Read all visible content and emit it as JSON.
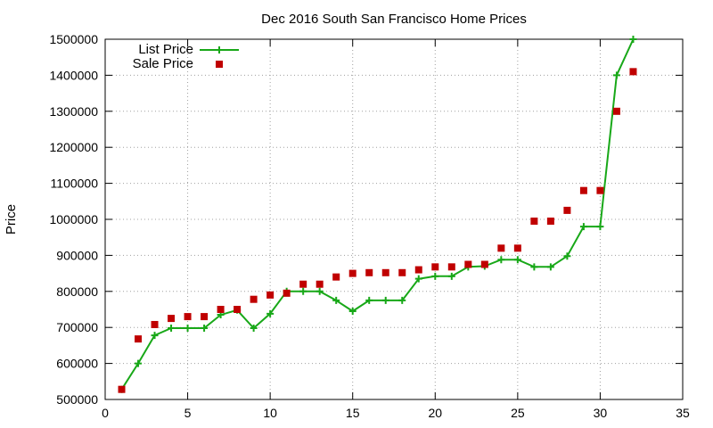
{
  "chart_data": {
    "type": "line",
    "title": "Dec 2016 South San Francisco Home Prices",
    "xlabel": "",
    "ylabel": "Price",
    "xlim": [
      0,
      35
    ],
    "ylim": [
      500000,
      1500000
    ],
    "xticks": [
      0,
      5,
      10,
      15,
      20,
      25,
      30,
      35
    ],
    "yticks": [
      500000,
      600000,
      700000,
      800000,
      900000,
      1000000,
      1100000,
      1200000,
      1300000,
      1400000,
      1500000
    ],
    "grid": true,
    "legend_position": "top-left",
    "series": [
      {
        "name": "List Price",
        "style": "line-with-plus-markers",
        "color": "#18a818",
        "x": [
          1,
          2,
          3,
          4,
          5,
          6,
          7,
          8,
          9,
          10,
          11,
          12,
          13,
          14,
          15,
          16,
          17,
          18,
          19,
          20,
          21,
          22,
          23,
          24,
          25,
          26,
          27,
          28,
          29,
          30,
          31,
          32
        ],
        "y": [
          528000,
          600000,
          678000,
          698000,
          698000,
          698000,
          735000,
          748000,
          698000,
          738000,
          800000,
          800000,
          800000,
          775000,
          745000,
          775000,
          775000,
          775000,
          835000,
          842000,
          842000,
          868000,
          870000,
          888000,
          888000,
          868000,
          868000,
          898000,
          980000,
          980000,
          1400000,
          1500000
        ]
      },
      {
        "name": "Sale Price",
        "style": "square-markers",
        "color": "#c00000",
        "x": [
          1,
          2,
          3,
          4,
          5,
          6,
          7,
          8,
          9,
          10,
          11,
          12,
          13,
          14,
          15,
          16,
          17,
          18,
          19,
          20,
          21,
          22,
          23,
          24,
          25,
          26,
          27,
          28,
          29,
          30,
          31,
          32
        ],
        "y": [
          528000,
          668000,
          708000,
          725000,
          730000,
          730000,
          750000,
          750000,
          778000,
          790000,
          795000,
          820000,
          820000,
          840000,
          850000,
          852000,
          852000,
          852000,
          860000,
          868000,
          868000,
          875000,
          875000,
          920000,
          920000,
          995000,
          995000,
          1025000,
          1080000,
          1080000,
          1300000,
          1410000
        ]
      }
    ]
  }
}
